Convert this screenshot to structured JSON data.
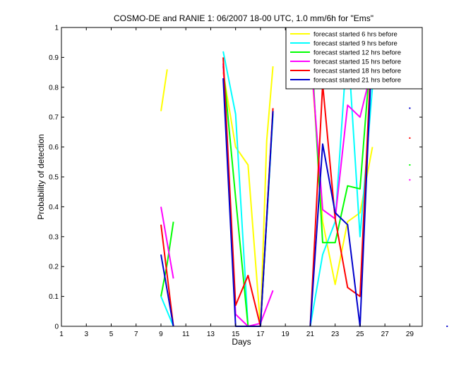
{
  "chart_data": {
    "type": "line",
    "title": "COSMO-DE and RANIE 1: 06/2007 18-00 UTC, 1.0 mm/6h for \"Ems\"",
    "xlabel": "Days",
    "ylabel": "Probability of detection",
    "xlim": [
      1,
      30
    ],
    "ylim": [
      0,
      1
    ],
    "x_ticks": [
      1,
      3,
      5,
      7,
      9,
      11,
      13,
      15,
      17,
      19,
      21,
      23,
      25,
      27,
      29
    ],
    "y_ticks": [
      0,
      0.1,
      0.2,
      0.3,
      0.4,
      0.5,
      0.6,
      0.7,
      0.8,
      0.9,
      1
    ],
    "y_tick_labels": [
      "0",
      "0.1",
      "0.2",
      "0.3",
      "0.4",
      "0.5",
      "0.6",
      "0.7",
      "0.8",
      "0.9",
      "1"
    ],
    "grid": false,
    "legend_position": "top-right",
    "series": [
      {
        "name": "forecast started 6 hrs before",
        "color": "#ffff00",
        "segments": [
          [
            [
              9,
              0.72
            ],
            [
              9.5,
              0.86
            ]
          ],
          [
            [
              14,
              0.85
            ],
            [
              15,
              0.6
            ],
            [
              16,
              0.54
            ],
            [
              17,
              0.0
            ],
            [
              17.5,
              0.62
            ],
            [
              18,
              0.87
            ]
          ],
          [
            [
              21,
              0.93
            ],
            [
              22,
              0.35
            ],
            [
              23,
              0.14
            ],
            [
              24,
              0.35
            ],
            [
              25,
              0.38
            ],
            [
              26,
              0.6
            ]
          ]
        ],
        "points": [
          [
            29,
            0.82
          ]
        ]
      },
      {
        "name": "forecast started 9 hrs before",
        "color": "#00ffff",
        "segments": [
          [
            [
              9,
              0.1
            ],
            [
              10,
              0.0
            ]
          ],
          [
            [
              14,
              0.92
            ],
            [
              15,
              0.71
            ],
            [
              16,
              0.0
            ],
            [
              17,
              0.0
            ],
            [
              18,
              0.71
            ]
          ],
          [
            [
              21,
              0.0
            ],
            [
              22,
              0.24
            ],
            [
              23,
              0.35
            ],
            [
              24,
              0.96
            ],
            [
              25,
              0.3
            ],
            [
              26,
              0.8
            ]
          ]
        ],
        "points": [
          [
            29,
            0.86
          ]
        ]
      },
      {
        "name": "forecast started 12 hrs before",
        "color": "#00ff00",
        "segments": [
          [
            [
              9,
              0.1
            ],
            [
              9.5,
              0.21
            ],
            [
              10,
              0.35
            ]
          ],
          [
            [
              14,
              0.87
            ],
            [
              15,
              0.43
            ],
            [
              16,
              0.0
            ],
            [
              17,
              0.0
            ],
            [
              18,
              0.72
            ]
          ],
          [
            [
              21,
              1.0
            ],
            [
              22,
              0.28
            ],
            [
              23,
              0.28
            ],
            [
              24,
              0.47
            ],
            [
              25,
              0.46
            ],
            [
              26,
              0.99
            ]
          ]
        ],
        "points": [
          [
            29,
            0.54
          ]
        ]
      },
      {
        "name": "forecast started 15 hrs before",
        "color": "#ff00ff",
        "segments": [
          [
            [
              9,
              0.4
            ],
            [
              10,
              0.16
            ]
          ],
          [
            [
              14,
              0.88
            ],
            [
              15,
              0.04
            ],
            [
              16,
              0.0
            ],
            [
              17,
              0.01
            ],
            [
              18,
              0.12
            ]
          ],
          [
            [
              21,
              0.93
            ],
            [
              22,
              0.39
            ],
            [
              23,
              0.36
            ],
            [
              24,
              0.74
            ],
            [
              25,
              0.7
            ],
            [
              26,
              0.87
            ]
          ]
        ],
        "points": [
          [
            29,
            0.49
          ]
        ]
      },
      {
        "name": "forecast started 18 hrs before",
        "color": "#ff0000",
        "segments": [
          [
            [
              9,
              0.34
            ],
            [
              10,
              0.0
            ]
          ],
          [
            [
              14,
              0.9
            ],
            [
              15,
              0.07
            ],
            [
              16,
              0.17
            ],
            [
              17,
              0.0
            ],
            [
              18,
              0.73
            ]
          ],
          [
            [
              21,
              0.0
            ],
            [
              22,
              0.81
            ],
            [
              23,
              0.36
            ],
            [
              24,
              0.13
            ],
            [
              25,
              0.1
            ],
            [
              26,
              1.0
            ]
          ]
        ],
        "points": [
          [
            29,
            0.63
          ]
        ]
      },
      {
        "name": "forecast started 21 hrs before",
        "color": "#0000cc",
        "segments": [
          [
            [
              9,
              0.24
            ],
            [
              10,
              0.0
            ]
          ],
          [
            [
              14,
              0.83
            ],
            [
              15,
              0.0
            ],
            [
              16,
              0.0
            ],
            [
              17,
              0.0
            ],
            [
              18,
              0.72
            ]
          ],
          [
            [
              21,
              0.0
            ],
            [
              22,
              0.61
            ],
            [
              23,
              0.38
            ],
            [
              24,
              0.34
            ],
            [
              25,
              0.0
            ],
            [
              26,
              0.96
            ]
          ]
        ],
        "points": [
          [
            29,
            0.73
          ],
          [
            32,
            0.0
          ]
        ]
      }
    ]
  }
}
